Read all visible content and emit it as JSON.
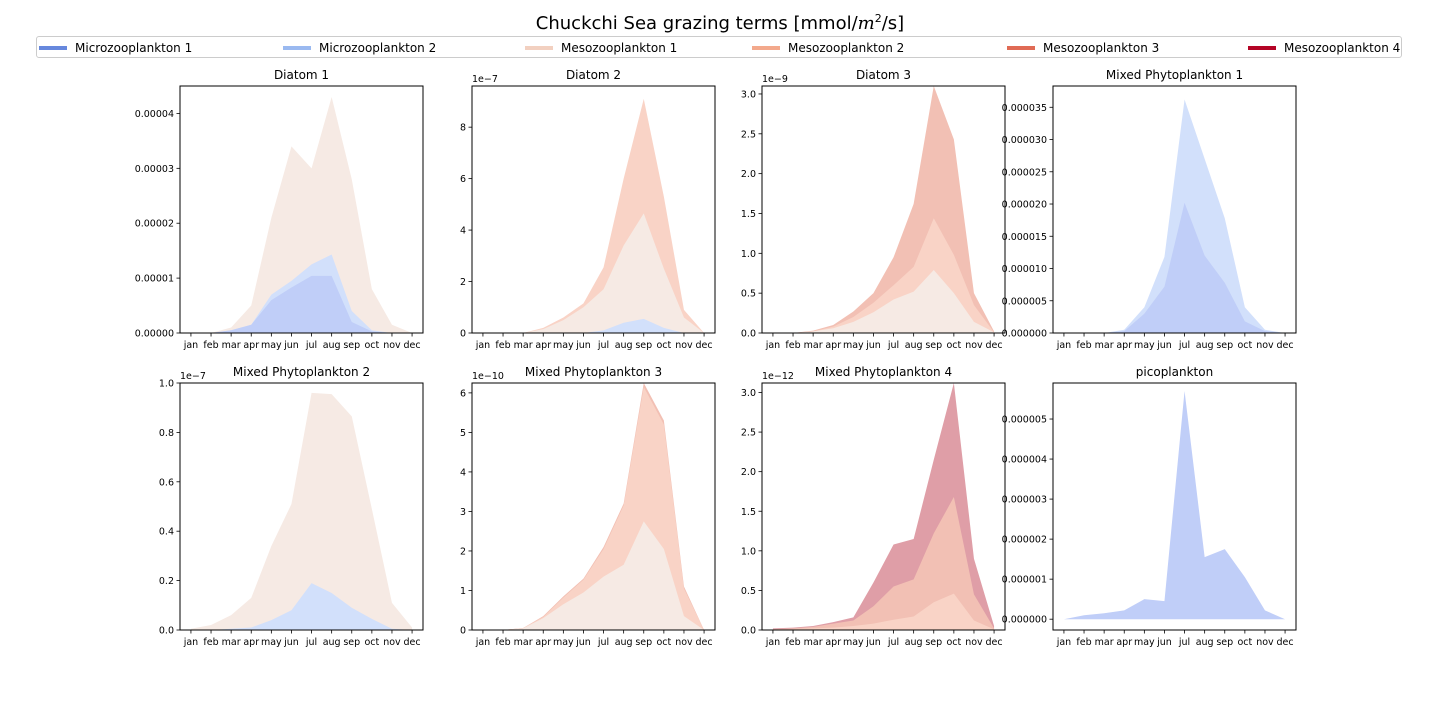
{
  "figure": {
    "title_text": "Chuckchi Sea grazing terms [mmol/",
    "title_unit_m": "m",
    "title_unit_exp": "2",
    "title_suffix": "/s]"
  },
  "legend": [
    {
      "name": "Microzooplankton 1",
      "color": "#6788dd"
    },
    {
      "name": "Microzooplankton 2",
      "color": "#9ab9f0"
    },
    {
      "name": "Mesozooplankton 1",
      "color": "#f2d0c0"
    },
    {
      "name": "Mesozooplankton 2",
      "color": "#f3a98c"
    },
    {
      "name": "Mesozooplankton 3",
      "color": "#e06b55"
    },
    {
      "name": "Mesozooplankton 4",
      "color": "#b40426"
    }
  ],
  "chart_data": [
    {
      "type": "area",
      "title": "Diatom 1",
      "categories": [
        "jan",
        "feb",
        "mar",
        "apr",
        "may",
        "jun",
        "jul",
        "aug",
        "sep",
        "oct",
        "nov",
        "dec"
      ],
      "ylim": [
        0,
        4.5e-05
      ],
      "yticks": [
        "0.00000",
        "0.00001",
        "0.00002",
        "0.00003",
        "0.00004"
      ],
      "ytick_values": [
        0,
        1e-05,
        2e-05,
        3e-05,
        4e-05
      ],
      "offset_label": "",
      "series": [
        {
          "name": "Mesozooplankton 1",
          "color": "#f6eae4",
          "values": [
            0,
            0,
            1e-06,
            5e-06,
            2.1e-05,
            3.4e-05,
            3e-05,
            4.3e-05,
            2.8e-05,
            8e-06,
            1.5e-06,
            0
          ]
        },
        {
          "name": "Microzooplankton 2",
          "color": "#d2e0fb",
          "values": [
            0,
            0,
            5e-07,
            1.5e-06,
            7e-06,
            9.5e-06,
            1.25e-05,
            1.43e-05,
            4e-06,
            5e-07,
            0,
            0
          ]
        },
        {
          "name": "Microzooplankton 1",
          "color": "#c0cef8",
          "values": [
            0,
            0,
            5e-07,
            1.5e-06,
            6e-06,
            8.3e-06,
            1.04e-05,
            1.04e-05,
            2e-06,
            3e-07,
            0,
            0
          ]
        }
      ]
    },
    {
      "type": "area",
      "title": "Diatom 2",
      "categories": [
        "jan",
        "feb",
        "mar",
        "apr",
        "may",
        "jun",
        "jul",
        "aug",
        "sep",
        "oct",
        "nov",
        "dec"
      ],
      "ylim": [
        0,
        9.6
      ],
      "yticks": [
        "0",
        "2",
        "4",
        "6",
        "8"
      ],
      "ytick_values": [
        0,
        2,
        4,
        6,
        8
      ],
      "offset_label": "1e−7",
      "series": [
        {
          "name": "Mesozooplankton 2",
          "color": "#f9d3c6",
          "values": [
            0,
            0,
            0,
            0.2,
            0.6,
            1.15,
            2.55,
            6.0,
            9.1,
            5.3,
            0.9,
            0
          ]
        },
        {
          "name": "Mesozooplankton 1",
          "color": "#f6eae4",
          "values": [
            0,
            0,
            0,
            0.15,
            0.5,
            1.0,
            1.7,
            3.4,
            4.65,
            2.5,
            0.6,
            0
          ]
        },
        {
          "name": "Microzooplankton 2",
          "color": "#d2e0fb",
          "values": [
            0,
            0,
            0,
            0,
            0,
            0,
            0.1,
            0.4,
            0.55,
            0.2,
            0,
            0
          ]
        }
      ]
    },
    {
      "type": "area",
      "title": "Diatom 3",
      "categories": [
        "jan",
        "feb",
        "mar",
        "apr",
        "may",
        "jun",
        "jul",
        "aug",
        "sep",
        "oct",
        "nov",
        "dec"
      ],
      "ylim": [
        0,
        3.1
      ],
      "yticks": [
        "0.0",
        "0.5",
        "1.0",
        "1.5",
        "2.0",
        "2.5",
        "3.0"
      ],
      "ytick_values": [
        0,
        0.5,
        1,
        1.5,
        2,
        2.5,
        3
      ],
      "offset_label": "1e−9",
      "series": [
        {
          "name": "Mesozooplankton 3",
          "color": "#f2c0b4",
          "values": [
            0,
            0,
            0.03,
            0.1,
            0.27,
            0.5,
            0.95,
            1.62,
            3.1,
            2.43,
            0.5,
            0.02
          ]
        },
        {
          "name": "Mesozooplankton 2",
          "color": "#f9d3c6",
          "values": [
            0,
            0,
            0.02,
            0.08,
            0.2,
            0.38,
            0.6,
            0.83,
            1.44,
            0.98,
            0.35,
            0.01
          ]
        },
        {
          "name": "Mesozooplankton 1",
          "color": "#f6eae4",
          "values": [
            0,
            0,
            0.02,
            0.06,
            0.14,
            0.26,
            0.42,
            0.52,
            0.79,
            0.5,
            0.14,
            0.01
          ]
        }
      ]
    },
    {
      "type": "area",
      "title": "Mixed Phytoplankton 1",
      "categories": [
        "jan",
        "feb",
        "mar",
        "apr",
        "may",
        "jun",
        "jul",
        "aug",
        "sep",
        "oct",
        "nov",
        "dec"
      ],
      "ylim": [
        0,
        3.83e-05
      ],
      "yticks": [
        "0.000000",
        "0.000005",
        "0.000010",
        "0.000015",
        "0.000020",
        "0.000025",
        "0.000030",
        "0.000035"
      ],
      "ytick_values": [
        0,
        5e-06,
        1e-05,
        1.5e-05,
        2e-05,
        2.5e-05,
        3e-05,
        3.5e-05
      ],
      "offset_label": "",
      "series": [
        {
          "name": "Microzooplankton 2",
          "color": "#d2e0fb",
          "values": [
            0,
            0,
            0,
            5e-07,
            4e-06,
            1.18e-05,
            3.62e-05,
            2.7e-05,
            1.78e-05,
            4e-06,
            5e-07,
            0
          ]
        },
        {
          "name": "Microzooplankton 1",
          "color": "#c0cef8",
          "values": [
            0,
            0,
            0,
            3e-07,
            3e-06,
            7.2e-06,
            2.02e-05,
            1.2e-05,
            7.8e-06,
            1.8e-06,
            3e-07,
            0
          ]
        }
      ]
    },
    {
      "type": "area",
      "title": "Mixed Phytoplankton 2",
      "categories": [
        "jan",
        "feb",
        "mar",
        "apr",
        "may",
        "jun",
        "jul",
        "aug",
        "sep",
        "oct",
        "nov",
        "dec"
      ],
      "ylim": [
        0,
        1.0
      ],
      "yticks": [
        "0.0",
        "0.2",
        "0.4",
        "0.6",
        "0.8",
        "1.0"
      ],
      "ytick_values": [
        0,
        0.2,
        0.4,
        0.6,
        0.8,
        1.0
      ],
      "offset_label": "1e−7",
      "series": [
        {
          "name": "Mesozooplankton 1",
          "color": "#f6eae4",
          "values": [
            0.005,
            0.02,
            0.06,
            0.13,
            0.34,
            0.51,
            0.96,
            0.955,
            0.865,
            0.49,
            0.11,
            0.01
          ]
        },
        {
          "name": "Microzooplankton 2",
          "color": "#d2e0fb",
          "values": [
            0,
            0,
            0.005,
            0.01,
            0.04,
            0.08,
            0.19,
            0.15,
            0.09,
            0.045,
            0.005,
            0
          ]
        }
      ]
    },
    {
      "type": "area",
      "title": "Mixed Phytoplankton 3",
      "categories": [
        "jan",
        "feb",
        "mar",
        "apr",
        "may",
        "jun",
        "jul",
        "aug",
        "sep",
        "oct",
        "nov",
        "dec"
      ],
      "ylim": [
        0,
        6.25
      ],
      "yticks": [
        "0",
        "1",
        "2",
        "3",
        "4",
        "5",
        "6"
      ],
      "ytick_values": [
        0,
        1,
        2,
        3,
        4,
        5,
        6
      ],
      "offset_label": "1e−10",
      "series": [
        {
          "name": "Mesozooplankton 3",
          "color": "#f2c0b4",
          "values": [
            0,
            0,
            0.05,
            0.35,
            0.85,
            1.3,
            2.1,
            3.2,
            6.25,
            5.3,
            1.1,
            0
          ]
        },
        {
          "name": "Mesozooplankton 2",
          "color": "#f9d3c6",
          "values": [
            0,
            0,
            0.05,
            0.33,
            0.82,
            1.27,
            2.05,
            3.15,
            6.15,
            5.2,
            1.05,
            0
          ]
        },
        {
          "name": "Mesozooplankton 1",
          "color": "#f6eae4",
          "values": [
            0,
            0,
            0.04,
            0.3,
            0.65,
            0.95,
            1.35,
            1.65,
            2.75,
            2.05,
            0.35,
            0
          ]
        }
      ]
    },
    {
      "type": "area",
      "title": "Mixed Phytoplankton 4",
      "categories": [
        "jan",
        "feb",
        "mar",
        "apr",
        "may",
        "jun",
        "jul",
        "aug",
        "sep",
        "oct",
        "nov",
        "dec"
      ],
      "ylim": [
        0,
        3.12
      ],
      "yticks": [
        "0.0",
        "0.5",
        "1.0",
        "1.5",
        "2.0",
        "2.5",
        "3.0"
      ],
      "ytick_values": [
        0,
        0.5,
        1,
        1.5,
        2,
        2.5,
        3
      ],
      "offset_label": "1e−12",
      "series": [
        {
          "name": "Mesozooplankton 4",
          "color": "#df9ea7",
          "values": [
            0.02,
            0.03,
            0.05,
            0.1,
            0.16,
            0.6,
            1.08,
            1.15,
            2.15,
            3.12,
            0.9,
            0.05
          ]
        },
        {
          "name": "Mesozooplankton 3",
          "color": "#f2c0b4",
          "values": [
            0.01,
            0.02,
            0.04,
            0.08,
            0.12,
            0.3,
            0.55,
            0.64,
            1.22,
            1.68,
            0.45,
            0.02
          ]
        },
        {
          "name": "Mesozooplankton 2",
          "color": "#f9d3c6",
          "values": [
            0,
            0.01,
            0.02,
            0.03,
            0.05,
            0.08,
            0.13,
            0.17,
            0.35,
            0.46,
            0.12,
            0.01
          ]
        }
      ]
    },
    {
      "type": "area",
      "title": "picoplankton",
      "categories": [
        "jan",
        "feb",
        "mar",
        "apr",
        "may",
        "jun",
        "jul",
        "aug",
        "sep",
        "oct",
        "nov",
        "dec"
      ],
      "ylim": [
        -2.7e-07,
        5.9e-06
      ],
      "yticks": [
        "0.000000",
        "0.000001",
        "0.000002",
        "0.000003",
        "0.000004",
        "0.000005"
      ],
      "ytick_values": [
        0,
        1e-06,
        2e-06,
        3e-06,
        4e-06,
        5e-06
      ],
      "offset_label": "",
      "series": [
        {
          "name": "Microzooplankton 1",
          "color": "#c0cef8",
          "values": [
            0,
            1e-07,
            1.5e-07,
            2.2e-07,
            5e-07,
            4.5e-07,
            5.7e-06,
            1.55e-06,
            1.75e-06,
            1.05e-06,
            2.2e-07,
            0
          ]
        }
      ]
    }
  ]
}
